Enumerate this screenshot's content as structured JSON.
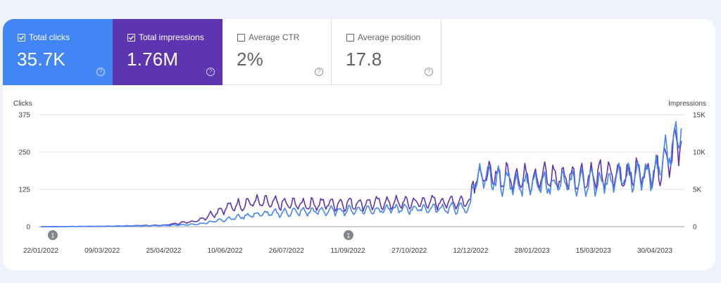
{
  "metrics": [
    {
      "label": "Total clicks",
      "value": "35.7K",
      "checked": true,
      "color": "#4285f4"
    },
    {
      "label": "Total impressions",
      "value": "1.76M",
      "checked": true,
      "color": "#5e35b1"
    },
    {
      "label": "Average CTR",
      "value": "2%",
      "checked": false
    },
    {
      "label": "Average position",
      "value": "17.8",
      "checked": false
    }
  ],
  "help_glyph": "?",
  "chart_data": {
    "type": "line",
    "left_axis_label": "Clicks",
    "right_axis_label": "Impressions",
    "left_ticks": [
      "375",
      "250",
      "125",
      "0"
    ],
    "right_ticks": [
      "15K",
      "10K",
      "5K",
      "0"
    ],
    "left_ylim": [
      0,
      375
    ],
    "right_ylim": [
      0,
      15000
    ],
    "x_tick_labels": [
      "22/01/2022",
      "09/03/2022",
      "25/04/2022",
      "10/06/2022",
      "26/07/2022",
      "11/09/2022",
      "27/10/2022",
      "12/12/2022",
      "28/01/2023",
      "15/03/2023",
      "30/04/2023"
    ],
    "annotations": [
      {
        "date": "2022-01-31",
        "label": "1"
      },
      {
        "date": "2022-09-11",
        "label": "1"
      }
    ],
    "series": [
      {
        "axis": "left",
        "color": "#4285f4",
        "dates": [
          "2022-01-22",
          "2022-03-09",
          "2022-04-25",
          "2022-05-20",
          "2022-06-10",
          "2022-07-01",
          "2022-07-26",
          "2022-09-11",
          "2022-10-27",
          "2022-12-12",
          "2022-12-14",
          "2023-01-28",
          "2023-03-15",
          "2023-04-30",
          "2023-05-20"
        ],
        "values": [
          0,
          1,
          4,
          8,
          25,
          40,
          48,
          55,
          60,
          62,
          165,
          140,
          150,
          175,
          330
        ]
      },
      {
        "axis": "right",
        "color": "#5e35b1",
        "dates": [
          "2022-01-22",
          "2022-03-09",
          "2022-04-25",
          "2022-05-20",
          "2022-06-10",
          "2022-07-01",
          "2022-07-26",
          "2022-09-11",
          "2022-10-27",
          "2022-12-12",
          "2022-12-14",
          "2023-01-28",
          "2023-03-15",
          "2023-04-30",
          "2023-05-20"
        ],
        "values": [
          0,
          50,
          200,
          800,
          2500,
          3300,
          3000,
          3100,
          3200,
          3400,
          6800,
          6600,
          6700,
          7400,
          11500
        ]
      }
    ]
  }
}
